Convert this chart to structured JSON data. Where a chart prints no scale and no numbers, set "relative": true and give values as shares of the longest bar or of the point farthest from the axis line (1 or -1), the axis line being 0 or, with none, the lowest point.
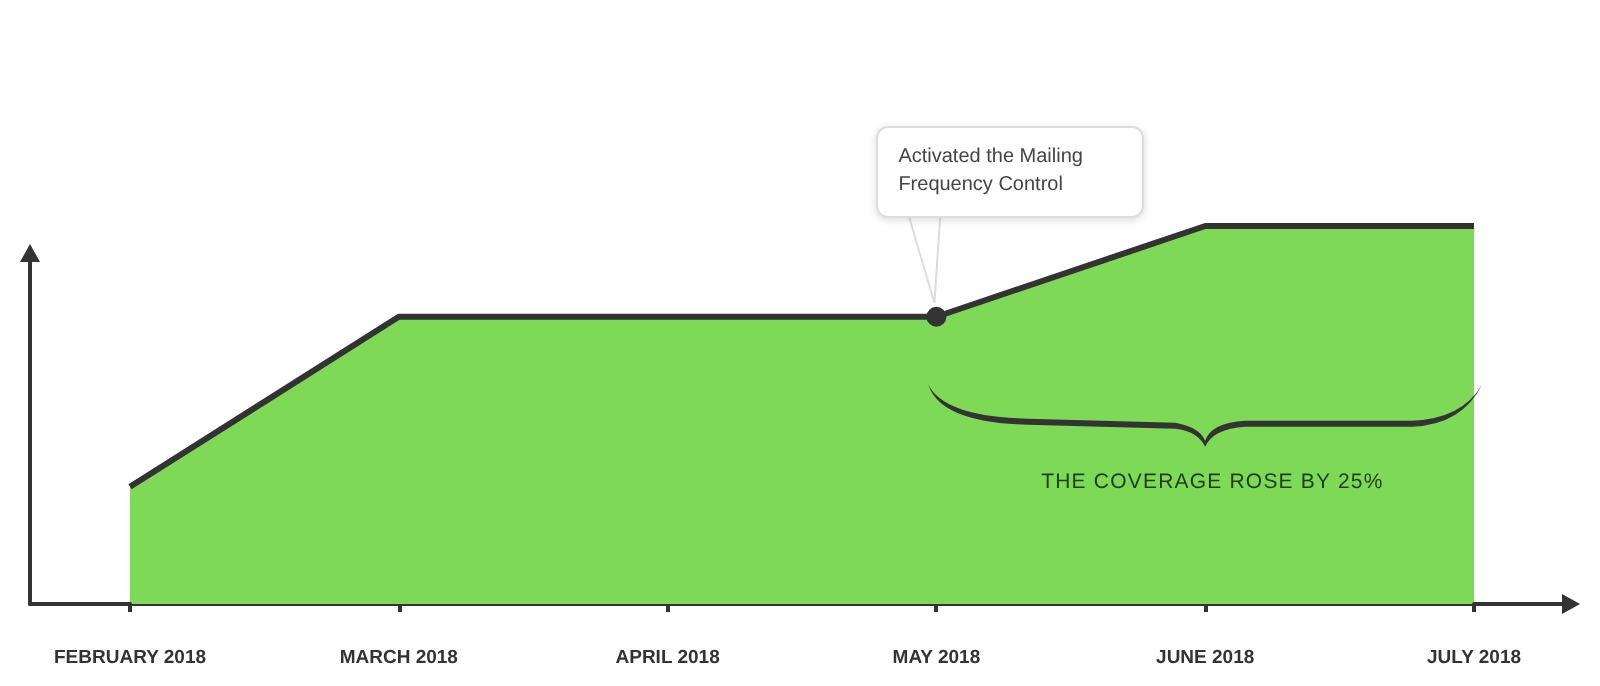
{
  "chart_data": {
    "type": "area",
    "relative": true,
    "categories": [
      "FEBRUARY 2018",
      "MARCH 2018",
      "APRIL 2018",
      "MAY 2018",
      "JUNE 2018",
      "JULY 2018"
    ],
    "series": [
      {
        "color": "#7ed957",
        "values": [
          0.31,
          0.76,
          0.76,
          0.76,
          1,
          1
        ]
      }
    ],
    "annotations": [
      {
        "text": "Activated the Mailing Frequency Control",
        "x": "MAY 2018",
        "y": 0.76
      },
      "THE COVERAGE ROSE BY 25%"
    ],
    "marker": "none",
    "grid": false
  }
}
